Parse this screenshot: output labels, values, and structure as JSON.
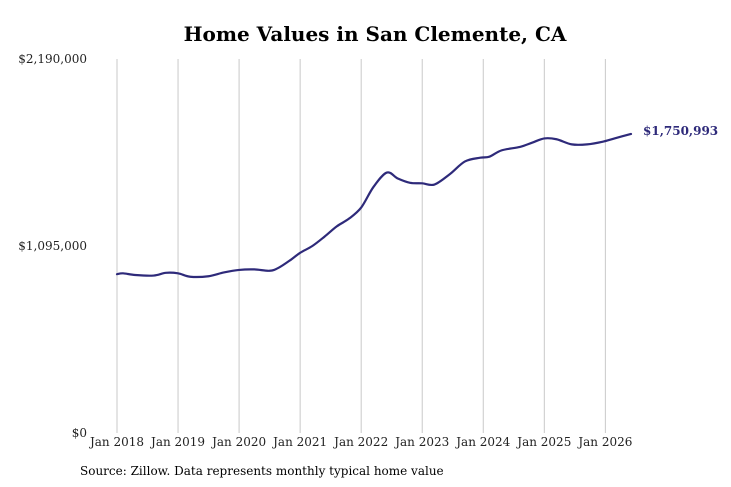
{
  "chart_data": {
    "type": "line",
    "title": "Home Values in San Clemente, CA",
    "source_note": "Source: Zillow. Data represents monthly typical home value",
    "ylim": [
      0,
      2190000
    ],
    "y_ticks": [
      {
        "value": 0,
        "label": "$0"
      },
      {
        "value": 1095000,
        "label": "$1,095,000"
      },
      {
        "value": 2190000,
        "label": "$2,190,000"
      }
    ],
    "x_ticks": [
      {
        "value": 2018.0,
        "label": "Jan 2018"
      },
      {
        "value": 2019.0,
        "label": "Jan 2019"
      },
      {
        "value": 2020.0,
        "label": "Jan 2020"
      },
      {
        "value": 2021.0,
        "label": "Jan 2021"
      },
      {
        "value": 2022.0,
        "label": "Jan 2022"
      },
      {
        "value": 2023.0,
        "label": "Jan 2023"
      },
      {
        "value": 2024.0,
        "label": "Jan 2024"
      },
      {
        "value": 2025.0,
        "label": "Jan 2025"
      },
      {
        "value": 2026.0,
        "label": "Jan 2026"
      }
    ],
    "xlim": [
      2018.0,
      2026.42
    ],
    "vertical_grid": true,
    "horizontal_grid": false,
    "series": [
      {
        "color": "#2e2a7a",
        "end_label": "$1,750,993",
        "x": [
          2018.0,
          2018.1,
          2018.3,
          2018.6,
          2018.8,
          2019.0,
          2019.2,
          2019.5,
          2019.75,
          2020.0,
          2020.25,
          2020.5,
          2020.65,
          2020.85,
          2021.0,
          2021.2,
          2021.4,
          2021.6,
          2021.8,
          2022.0,
          2022.2,
          2022.42,
          2022.6,
          2022.8,
          2023.0,
          2023.2,
          2023.45,
          2023.7,
          2023.95,
          2024.1,
          2024.3,
          2024.6,
          2024.8,
          2025.0,
          2025.2,
          2025.45,
          2025.7,
          2025.95,
          2026.15,
          2026.42
        ],
        "y": [
          930000,
          935000,
          925000,
          922000,
          938000,
          935000,
          915000,
          918000,
          940000,
          955000,
          958000,
          950000,
          968000,
          1015000,
          1055000,
          1095000,
          1150000,
          1210000,
          1255000,
          1320000,
          1440000,
          1525000,
          1490000,
          1465000,
          1462000,
          1455000,
          1515000,
          1590000,
          1612000,
          1618000,
          1655000,
          1675000,
          1700000,
          1725000,
          1720000,
          1690000,
          1690000,
          1705000,
          1725000,
          1750993
        ]
      }
    ]
  }
}
